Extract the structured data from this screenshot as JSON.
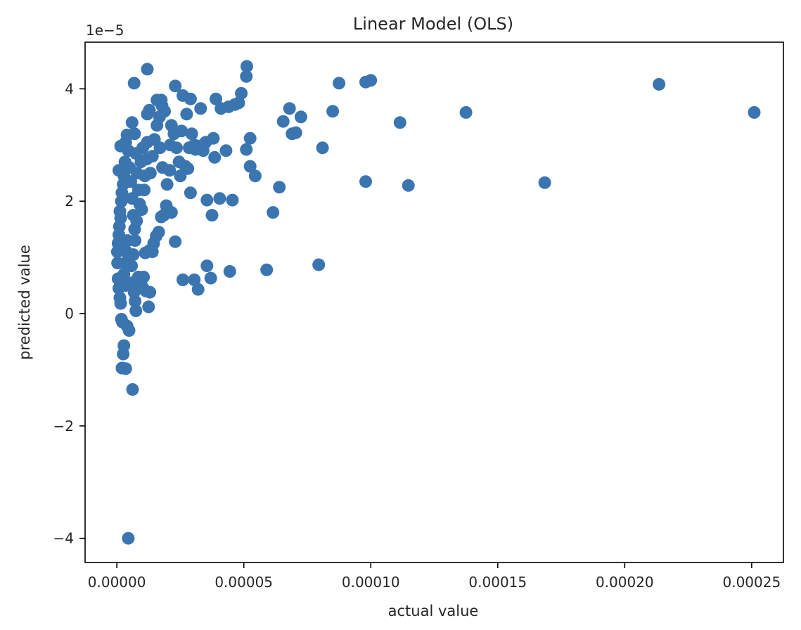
{
  "chart_data": {
    "type": "scatter",
    "title": "Linear Model (OLS)",
    "xlabel": "actual value",
    "ylabel": "predicted value",
    "y_offset_label": "1e−5",
    "xlim": [
      -1.25e-05,
      0.0002625
    ],
    "ylim": [
      -4.43,
      4.83
    ],
    "x_ticks": [
      {
        "value": 0,
        "label": "0.00000"
      },
      {
        "value": 5e-05,
        "label": "0.00005"
      },
      {
        "value": 0.0001,
        "label": "0.00010"
      },
      {
        "value": 0.00015,
        "label": "0.00015"
      },
      {
        "value": 0.0002,
        "label": "0.00020"
      },
      {
        "value": 0.00025,
        "label": "0.00025"
      }
    ],
    "y_ticks": [
      {
        "value": -4,
        "label": "−4"
      },
      {
        "value": -2,
        "label": "−2"
      },
      {
        "value": 0,
        "label": "0"
      },
      {
        "value": 2,
        "label": "2"
      },
      {
        "value": 4,
        "label": "4"
      }
    ],
    "grid": false,
    "marker_color": "#3a75b0",
    "series": [
      {
        "points": [
          [
            4.5e-06,
            -4.0
          ],
          [
            6.2e-06,
            -1.35
          ],
          [
            3.5e-06,
            -0.98
          ],
          [
            2e-06,
            -0.97
          ],
          [
            2.5e-06,
            -0.72
          ],
          [
            2.8e-06,
            -0.57
          ],
          [
            4.8e-06,
            -0.3
          ],
          [
            4e-06,
            -0.22
          ],
          [
            2.2e-06,
            -0.15
          ],
          [
            1.8e-06,
            -0.1
          ],
          [
            1.5e-06,
            0.18
          ],
          [
            1.2e-06,
            0.28
          ],
          [
            8e-07,
            0.45
          ],
          [
            5e-07,
            0.62
          ],
          [
            3e-07,
            0.9
          ],
          [
            2e-07,
            1.1
          ],
          [
            5e-07,
            1.25
          ],
          [
            8e-07,
            1.4
          ],
          [
            1e-06,
            1.55
          ],
          [
            1.5e-06,
            1.7
          ],
          [
            1.2e-06,
            1.82
          ],
          [
            1.8e-06,
            2.0
          ],
          [
            2e-06,
            2.15
          ],
          [
            2.5e-06,
            2.3
          ],
          [
            8e-07,
            2.55
          ],
          [
            2.8e-06,
            2.45
          ],
          [
            3.2e-06,
            2.7
          ],
          [
            1.5e-06,
            2.98
          ],
          [
            3.5e-06,
            3.05
          ],
          [
            4e-06,
            3.18
          ],
          [
            4.5e-06,
            2.9
          ],
          [
            5e-06,
            2.6
          ],
          [
            5.5e-06,
            2.35
          ],
          [
            6e-06,
            2.05
          ],
          [
            6.5e-06,
            1.75
          ],
          [
            7e-06,
            1.5
          ],
          [
            4.2e-06,
            1.3
          ],
          [
            3.8e-06,
            1.1
          ],
          [
            3.2e-06,
            0.9
          ],
          [
            2.8e-06,
            0.7
          ],
          [
            3.5e-06,
            0.5
          ],
          [
            6e-06,
            3.4
          ],
          [
            6.8e-06,
            4.1
          ],
          [
            7e-06,
            3.2
          ],
          [
            7.5e-06,
            2.85
          ],
          [
            8e-06,
            2.5
          ],
          [
            8.5e-06,
            2.2
          ],
          [
            9e-06,
            1.95
          ],
          [
            7.8e-06,
            1.65
          ],
          [
            7.2e-06,
            1.3
          ],
          [
            6.5e-06,
            1.05
          ],
          [
            5.8e-06,
            0.85
          ],
          [
            6.2e-06,
            0.55
          ],
          [
            6.8e-06,
            0.38
          ],
          [
            7.2e-06,
            0.22
          ],
          [
            7.5e-06,
            0.05
          ],
          [
            8.5e-06,
            0.65
          ],
          [
            9.2e-06,
            0.55
          ],
          [
            1e-05,
            0.48
          ],
          [
            1.05e-05,
            0.65
          ],
          [
            1.15e-05,
            0.4
          ],
          [
            1.25e-05,
            0.12
          ],
          [
            1.3e-05,
            0.38
          ],
          [
            1.12e-05,
            1.08
          ],
          [
            1.28e-05,
            1.12
          ],
          [
            1.4e-05,
            1.1
          ],
          [
            1.45e-05,
            1.25
          ],
          [
            1.55e-05,
            1.38
          ],
          [
            1.65e-05,
            1.45
          ],
          [
            1.75e-05,
            1.72
          ],
          [
            1.85e-05,
            1.75
          ],
          [
            1.95e-05,
            1.92
          ],
          [
            2.15e-05,
            1.8
          ],
          [
            2.3e-05,
            1.28
          ],
          [
            9.5e-06,
            2.7
          ],
          [
            1.1e-05,
            2.45
          ],
          [
            1.02e-05,
            2.95
          ],
          [
            1.2e-05,
            3.05
          ],
          [
            1.18e-05,
            2.75
          ],
          [
            1.08e-05,
            2.2
          ],
          [
            9.8e-06,
            1.85
          ],
          [
            1.32e-05,
            2.5
          ],
          [
            1.4e-05,
            2.8
          ],
          [
            1.48e-05,
            3.1
          ],
          [
            1.58e-05,
            3.35
          ],
          [
            1.68e-05,
            3.5
          ],
          [
            1.78e-05,
            3.7
          ],
          [
            1.88e-05,
            3.6
          ],
          [
            1.75e-05,
            3.8
          ],
          [
            1.58e-05,
            3.8
          ],
          [
            1.2e-05,
            3.55
          ],
          [
            1.28e-05,
            3.62
          ],
          [
            1.2e-05,
            4.35
          ],
          [
            1.7e-05,
            2.95
          ],
          [
            1.8e-05,
            2.6
          ],
          [
            1.98e-05,
            2.3
          ],
          [
            2.08e-05,
            2.55
          ],
          [
            2.1e-05,
            3.0
          ],
          [
            2.15e-05,
            3.35
          ],
          [
            2.25e-05,
            3.2
          ],
          [
            2.35e-05,
            2.95
          ],
          [
            2.45e-05,
            2.7
          ],
          [
            2.5e-05,
            2.45
          ],
          [
            2.55e-05,
            3.25
          ],
          [
            2.3e-05,
            4.05
          ],
          [
            2.6e-05,
            3.88
          ],
          [
            2.75e-05,
            3.55
          ],
          [
            2.9e-05,
            3.82
          ],
          [
            2.85e-05,
            2.95
          ],
          [
            2.95e-05,
            3.2
          ],
          [
            3.05e-05,
            3.0
          ],
          [
            3.1e-05,
            2.92
          ],
          [
            2.8e-05,
            2.58
          ],
          [
            2.7e-05,
            2.62
          ],
          [
            2.9e-05,
            2.15
          ],
          [
            3.3e-05,
            3.65
          ],
          [
            3.25e-05,
            2.98
          ],
          [
            3.4e-05,
            2.9
          ],
          [
            3.5e-05,
            3.05
          ],
          [
            3.55e-05,
            2.02
          ],
          [
            3.75e-05,
            1.75
          ],
          [
            3.8e-05,
            3.12
          ],
          [
            3.85e-05,
            2.78
          ],
          [
            3.9e-05,
            3.82
          ],
          [
            4.05e-05,
            2.05
          ],
          [
            4.1e-05,
            3.65
          ],
          [
            4.3e-05,
            2.9
          ],
          [
            4.4e-05,
            3.68
          ],
          [
            4.55e-05,
            2.02
          ],
          [
            4.65e-05,
            3.72
          ],
          [
            4.8e-05,
            3.75
          ],
          [
            4.9e-05,
            3.92
          ],
          [
            5.1e-05,
            2.92
          ],
          [
            5.1e-05,
            4.22
          ],
          [
            5.12e-05,
            4.4
          ],
          [
            5.25e-05,
            2.62
          ],
          [
            5.25e-05,
            3.12
          ],
          [
            5.45e-05,
            2.45
          ],
          [
            2.6e-05,
            0.6
          ],
          [
            3.05e-05,
            0.6
          ],
          [
            3.2e-05,
            0.43
          ],
          [
            3.55e-05,
            0.85
          ],
          [
            3.7e-05,
            0.63
          ],
          [
            4.45e-05,
            0.75
          ],
          [
            5.9e-05,
            0.78
          ],
          [
            7.95e-05,
            0.87
          ],
          [
            6.15e-05,
            1.8
          ],
          [
            6.4e-05,
            2.25
          ],
          [
            6.55e-05,
            3.42
          ],
          [
            6.8e-05,
            3.65
          ],
          [
            6.9e-05,
            3.2
          ],
          [
            7.05e-05,
            3.22
          ],
          [
            7.25e-05,
            3.5
          ],
          [
            8.1e-05,
            2.95
          ],
          [
            8.5e-05,
            3.6
          ],
          [
            8.75e-05,
            4.1
          ],
          [
            9.8e-05,
            2.35
          ],
          [
            9.8e-05,
            4.12
          ],
          [
            0.0001,
            4.15
          ],
          [
            0.0001115,
            3.4
          ],
          [
            0.0001148,
            2.28
          ],
          [
            0.0001375,
            3.58
          ],
          [
            0.0001685,
            2.33
          ],
          [
            0.0002135,
            4.08
          ],
          [
            0.000251,
            3.58
          ]
        ]
      }
    ]
  }
}
